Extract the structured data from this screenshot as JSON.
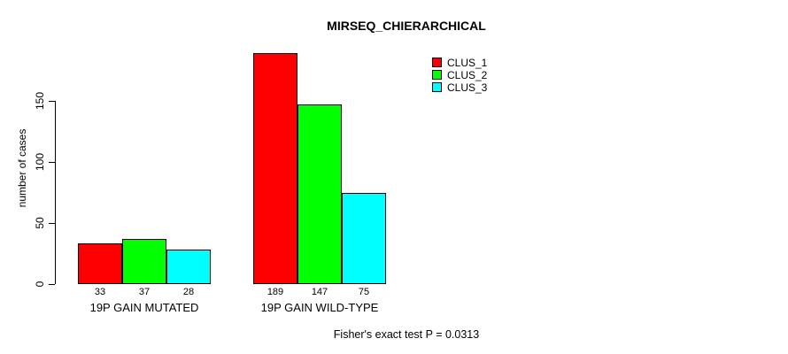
{
  "chart_data": {
    "type": "bar",
    "title": "MIRSEQ_CHIERARCHICAL",
    "categories": [
      "19P GAIN MUTATED",
      "19P GAIN WILD-TYPE"
    ],
    "series": [
      {
        "name": "CLUS_1",
        "color": "#ff0000",
        "values": [
          33,
          189
        ]
      },
      {
        "name": "CLUS_2",
        "color": "#00ff00",
        "values": [
          37,
          147
        ]
      },
      {
        "name": "CLUS_3",
        "color": "#00ffff",
        "values": [
          28,
          75
        ]
      }
    ],
    "xlabel": "",
    "ylabel": "number of cases",
    "yticks": [
      0,
      50,
      100,
      150
    ],
    "ylim": [
      0,
      189
    ],
    "bar_value_labels": [
      [
        33,
        37,
        28
      ],
      [
        189,
        147,
        75
      ]
    ],
    "legend_position": "top-right",
    "grid": false,
    "annotation": "Fisher's exact test P = 0.0313",
    "bar_fill_colors": [
      "#ff0000",
      "#00ff00",
      "#00ffff"
    ],
    "bar_border_color": "#000000"
  }
}
